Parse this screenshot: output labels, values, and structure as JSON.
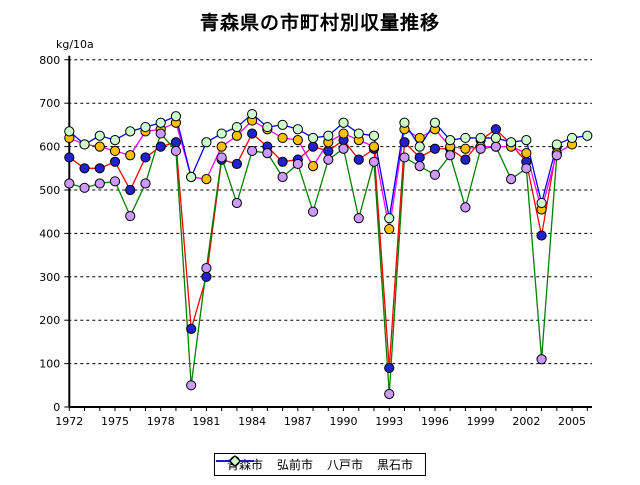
{
  "title": "青森県の市町村別収量推移",
  "unit_label": "kg/10a",
  "chart_data": {
    "type": "line",
    "title": "青森県の市町村別収量推移",
    "ylabel": "kg/10a",
    "xlabel": "",
    "ylim": [
      0,
      800
    ],
    "y_ticks": [
      0,
      100,
      200,
      300,
      400,
      500,
      600,
      700,
      800
    ],
    "x_tick_label_years": [
      1972,
      1975,
      1978,
      1981,
      1984,
      1987,
      1990,
      1993,
      1996,
      1999,
      2002,
      2005
    ],
    "grid": "horizontal-dashed",
    "legend_position": "bottom",
    "x": [
      1972,
      1973,
      1974,
      1975,
      1976,
      1977,
      1978,
      1979,
      1980,
      1981,
      1982,
      1983,
      1984,
      1985,
      1986,
      1987,
      1988,
      1989,
      1990,
      1991,
      1992,
      1993,
      1994,
      1995,
      1996,
      1997,
      1998,
      1999,
      2000,
      2001,
      2002,
      2003,
      2004,
      2005,
      2006
    ],
    "series": [
      {
        "name": "青森市",
        "line_color": "#ff0000",
        "marker_color": "#2222cc",
        "marker_shape": "circle",
        "values": [
          575,
          550,
          550,
          565,
          500,
          575,
          600,
          610,
          180,
          300,
          570,
          560,
          630,
          600,
          565,
          570,
          600,
          590,
          615,
          570,
          595,
          90,
          610,
          575,
          595,
          595,
          570,
          615,
          640,
          605,
          565,
          395,
          600,
          null,
          null
        ]
      },
      {
        "name": "弘前市",
        "line_color": "#ff00ff",
        "marker_color": "#ffc000",
        "marker_shape": "diamond",
        "values": [
          620,
          605,
          600,
          590,
          580,
          635,
          640,
          655,
          530,
          525,
          600,
          625,
          660,
          640,
          620,
          615,
          555,
          610,
          630,
          615,
          600,
          410,
          640,
          620,
          640,
          600,
          595,
          600,
          600,
          600,
          585,
          455,
          585,
          605,
          null
        ]
      },
      {
        "name": "八戸市",
        "line_color": "#008000",
        "marker_color": "#cc99ff",
        "marker_shape": "diamond",
        "values": [
          515,
          505,
          515,
          520,
          440,
          515,
          630,
          590,
          50,
          320,
          575,
          470,
          590,
          585,
          530,
          560,
          450,
          570,
          595,
          435,
          565,
          30,
          575,
          555,
          535,
          580,
          460,
          595,
          600,
          525,
          550,
          110,
          580,
          null,
          null
        ]
      },
      {
        "name": "黒石市",
        "line_color": "#0000ff",
        "marker_color": "#ccffcc",
        "marker_shape": "diamond",
        "values": [
          635,
          605,
          625,
          615,
          635,
          645,
          655,
          670,
          530,
          610,
          630,
          645,
          675,
          645,
          650,
          640,
          620,
          625,
          655,
          630,
          625,
          435,
          655,
          600,
          655,
          615,
          620,
          620,
          620,
          610,
          615,
          470,
          605,
          620,
          625
        ]
      }
    ]
  }
}
